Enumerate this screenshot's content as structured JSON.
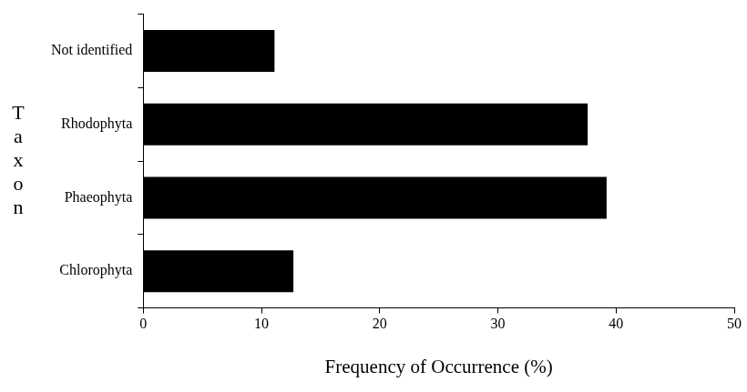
{
  "chart_data": {
    "type": "bar",
    "orientation": "horizontal",
    "xlabel": "Frequency of Occurrence (%)",
    "ylabel": "Taxon",
    "categories": [
      "Not identified",
      "Rhodophyta",
      "Phaeophyta",
      "Chlorophyta"
    ],
    "values": [
      11.1,
      37.6,
      39.2,
      12.7
    ],
    "color": "#000000",
    "xlim": [
      0,
      50
    ],
    "xticks": [
      0,
      10,
      20,
      30,
      40,
      50
    ],
    "grid": false
  }
}
